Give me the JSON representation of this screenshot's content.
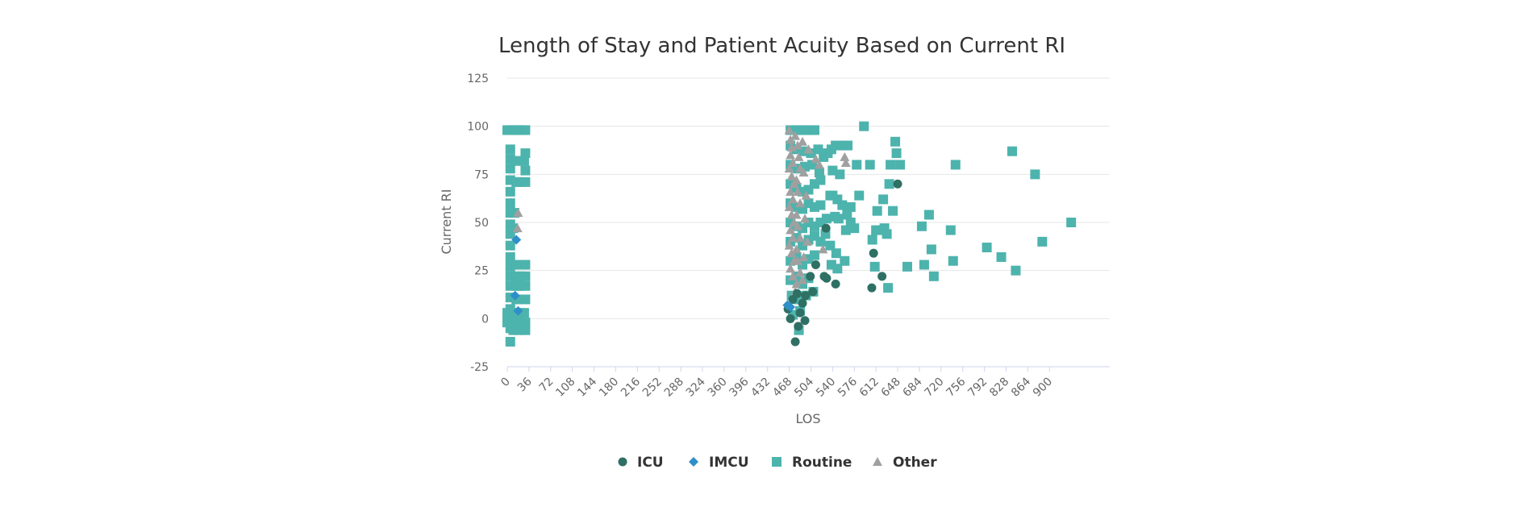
{
  "chart_data": {
    "type": "scatter",
    "title": "Length of Stay and Patient Acuity Based on Current RI",
    "xlabel": "LOS",
    "ylabel": "Current RI",
    "xlim": [
      0,
      1000
    ],
    "ylim": [
      -25,
      125
    ],
    "x_ticks": [
      0,
      36,
      72,
      108,
      144,
      180,
      216,
      252,
      288,
      324,
      360,
      396,
      432,
      468,
      504,
      540,
      576,
      612,
      648,
      684,
      720,
      756,
      792,
      828,
      864,
      900
    ],
    "y_ticks": [
      125,
      100,
      75,
      50,
      25,
      0,
      -25
    ],
    "grid": true,
    "legend_position": "bottom-center",
    "series": [
      {
        "name": "ICU",
        "marker": "circle",
        "color": "#2f7064",
        "points": [
          [
            478,
            -12
          ],
          [
            470,
            0
          ],
          [
            466,
            5
          ],
          [
            490,
            8
          ],
          [
            486,
            3
          ],
          [
            494,
            -1
          ],
          [
            483,
            -4
          ],
          [
            495,
            12
          ],
          [
            507,
            14
          ],
          [
            503,
            22
          ],
          [
            512,
            28
          ],
          [
            530,
            21
          ],
          [
            526,
            22
          ],
          [
            545,
            18
          ],
          [
            529,
            47
          ],
          [
            605,
            16
          ],
          [
            608,
            34
          ],
          [
            622,
            22
          ],
          [
            648,
            70
          ],
          [
            474,
            10
          ],
          [
            481,
            13
          ]
        ]
      },
      {
        "name": "IMCU",
        "marker": "diamond",
        "color": "#2f8fc8",
        "points": [
          [
            15,
            41
          ],
          [
            13,
            12
          ],
          [
            18,
            4
          ],
          [
            465,
            7
          ],
          [
            470,
            6
          ]
        ]
      },
      {
        "name": "Routine",
        "marker": "square",
        "color": "#4db3ad",
        "points": [
          [
            0,
            98
          ],
          [
            5,
            98
          ],
          [
            10,
            98
          ],
          [
            15,
            98
          ],
          [
            20,
            98
          ],
          [
            25,
            98
          ],
          [
            30,
            98
          ],
          [
            5,
            88
          ],
          [
            5,
            83
          ],
          [
            5,
            78
          ],
          [
            5,
            72
          ],
          [
            5,
            66
          ],
          [
            5,
            60
          ],
          [
            5,
            55
          ],
          [
            5,
            49
          ],
          [
            5,
            44
          ],
          [
            5,
            38
          ],
          [
            5,
            32
          ],
          [
            5,
            27
          ],
          [
            5,
            22
          ],
          [
            5,
            17
          ],
          [
            5,
            11
          ],
          [
            5,
            5
          ],
          [
            5,
            0
          ],
          [
            5,
            -5
          ],
          [
            5,
            -12
          ],
          [
            0,
            3
          ],
          [
            0,
            -2
          ],
          [
            12,
            82
          ],
          [
            20,
            82
          ],
          [
            28,
            82
          ],
          [
            15,
            71
          ],
          [
            22,
            71
          ],
          [
            30,
            71
          ],
          [
            30,
            86
          ],
          [
            30,
            77
          ],
          [
            15,
            28
          ],
          [
            22,
            28
          ],
          [
            30,
            28
          ],
          [
            15,
            22
          ],
          [
            22,
            22
          ],
          [
            30,
            22
          ],
          [
            15,
            17
          ],
          [
            22,
            17
          ],
          [
            30,
            17
          ],
          [
            15,
            10
          ],
          [
            30,
            10
          ],
          [
            12,
            3
          ],
          [
            20,
            3
          ],
          [
            28,
            3
          ],
          [
            15,
            -2
          ],
          [
            22,
            -2
          ],
          [
            30,
            -2
          ],
          [
            10,
            -6
          ],
          [
            20,
            -6
          ],
          [
            30,
            -6
          ],
          [
            12,
            55
          ],
          [
            10,
            47
          ],
          [
            470,
            98
          ],
          [
            478,
            98
          ],
          [
            486,
            98
          ],
          [
            494,
            98
          ],
          [
            502,
            98
          ],
          [
            510,
            98
          ],
          [
            470,
            90
          ],
          [
            480,
            88
          ],
          [
            492,
            87
          ],
          [
            504,
            86
          ],
          [
            516,
            88
          ],
          [
            470,
            80
          ],
          [
            482,
            78
          ],
          [
            494,
            79
          ],
          [
            506,
            80
          ],
          [
            518,
            76
          ],
          [
            470,
            70
          ],
          [
            480,
            68
          ],
          [
            490,
            66
          ],
          [
            500,
            67
          ],
          [
            510,
            70
          ],
          [
            520,
            72
          ],
          [
            470,
            60
          ],
          [
            480,
            58
          ],
          [
            490,
            57
          ],
          [
            500,
            60
          ],
          [
            510,
            58
          ],
          [
            520,
            59
          ],
          [
            470,
            50
          ],
          [
            480,
            48
          ],
          [
            490,
            47
          ],
          [
            500,
            50
          ],
          [
            510,
            48
          ],
          [
            520,
            50
          ],
          [
            530,
            52
          ],
          [
            470,
            40
          ],
          [
            480,
            42
          ],
          [
            490,
            38
          ],
          [
            500,
            41
          ],
          [
            510,
            43
          ],
          [
            520,
            40
          ],
          [
            470,
            30
          ],
          [
            480,
            32
          ],
          [
            490,
            28
          ],
          [
            500,
            31
          ],
          [
            510,
            33
          ],
          [
            470,
            20
          ],
          [
            480,
            22
          ],
          [
            490,
            18
          ],
          [
            500,
            21
          ],
          [
            472,
            12
          ],
          [
            484,
            10
          ],
          [
            496,
            12
          ],
          [
            508,
            14
          ],
          [
            474,
            2
          ],
          [
            484,
            -6
          ],
          [
            486,
            4
          ],
          [
            525,
            84
          ],
          [
            532,
            86
          ],
          [
            538,
            88
          ],
          [
            545,
            90
          ],
          [
            558,
            90
          ],
          [
            565,
            90
          ],
          [
            580,
            80
          ],
          [
            540,
            77
          ],
          [
            548,
            62
          ],
          [
            556,
            59
          ],
          [
            564,
            54
          ],
          [
            570,
            50
          ],
          [
            576,
            47
          ],
          [
            584,
            64
          ],
          [
            552,
            75
          ],
          [
            536,
            64
          ],
          [
            544,
            53
          ],
          [
            528,
            44
          ],
          [
            536,
            38
          ],
          [
            546,
            34
          ],
          [
            560,
            30
          ],
          [
            548,
            26
          ],
          [
            538,
            28
          ],
          [
            540,
            64
          ],
          [
            550,
            52
          ],
          [
            562,
            46
          ],
          [
            570,
            58
          ],
          [
            592,
            100
          ],
          [
            602,
            80
          ],
          [
            606,
            41
          ],
          [
            612,
            46
          ],
          [
            618,
            46
          ],
          [
            626,
            47
          ],
          [
            630,
            44
          ],
          [
            614,
            56
          ],
          [
            624,
            62
          ],
          [
            634,
            70
          ],
          [
            640,
            56
          ],
          [
            646,
            86
          ],
          [
            644,
            92
          ],
          [
            652,
            80
          ],
          [
            636,
            80
          ],
          [
            610,
            27
          ],
          [
            632,
            16
          ],
          [
            664,
            27
          ],
          [
            688,
            48
          ],
          [
            700,
            54
          ],
          [
            692,
            28
          ],
          [
            704,
            36
          ],
          [
            708,
            22
          ],
          [
            736,
            46
          ],
          [
            740,
            30
          ],
          [
            744,
            80
          ],
          [
            796,
            37
          ],
          [
            820,
            32
          ],
          [
            838,
            87
          ],
          [
            844,
            25
          ],
          [
            876,
            75
          ],
          [
            888,
            40
          ],
          [
            936,
            50
          ]
        ]
      },
      {
        "name": "Other",
        "marker": "triangle",
        "color": "#a0a0a0",
        "points": [
          [
            18,
            55
          ],
          [
            17,
            47
          ],
          [
            468,
            98
          ],
          [
            470,
            93
          ],
          [
            472,
            89
          ],
          [
            470,
            85
          ],
          [
            474,
            81
          ],
          [
            468,
            78
          ],
          [
            472,
            74
          ],
          [
            476,
            70
          ],
          [
            470,
            66
          ],
          [
            474,
            62
          ],
          [
            468,
            58
          ],
          [
            472,
            54
          ],
          [
            476,
            50
          ],
          [
            470,
            46
          ],
          [
            474,
            42
          ],
          [
            468,
            38
          ],
          [
            472,
            34
          ],
          [
            476,
            30
          ],
          [
            470,
            26
          ],
          [
            474,
            22
          ],
          [
            480,
            18
          ],
          [
            478,
            14
          ],
          [
            478,
            95
          ],
          [
            482,
            90
          ],
          [
            484,
            84
          ],
          [
            486,
            78
          ],
          [
            480,
            72
          ],
          [
            482,
            66
          ],
          [
            486,
            60
          ],
          [
            480,
            54
          ],
          [
            482,
            48
          ],
          [
            486,
            42
          ],
          [
            480,
            36
          ],
          [
            482,
            30
          ],
          [
            486,
            24
          ],
          [
            490,
            20
          ],
          [
            490,
            92
          ],
          [
            492,
            76
          ],
          [
            496,
            64
          ],
          [
            494,
            52
          ],
          [
            498,
            40
          ],
          [
            492,
            32
          ],
          [
            500,
            88
          ],
          [
            512,
            83
          ],
          [
            518,
            80
          ],
          [
            560,
            84
          ],
          [
            562,
            81
          ],
          [
            524,
            36
          ]
        ]
      }
    ]
  }
}
